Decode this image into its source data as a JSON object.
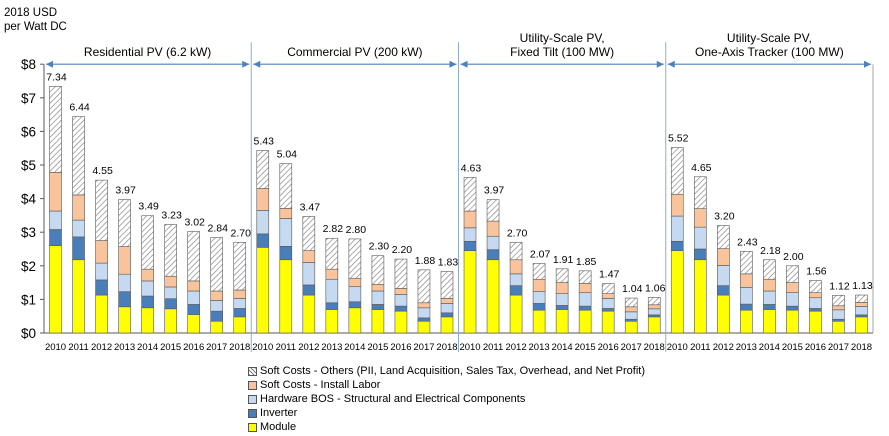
{
  "chart_data": {
    "type": "bar",
    "stacked": true,
    "y_axis_title": [
      "2018 USD",
      "per Watt DC"
    ],
    "ylim": [
      0,
      8
    ],
    "y_ticks": [
      "$0",
      "$1",
      "$2",
      "$3",
      "$4",
      "$5",
      "$6",
      "$7",
      "$8"
    ],
    "grid": false,
    "legend_position": "bottom",
    "years": [
      "2010",
      "2011",
      "2012",
      "2013",
      "2014",
      "2015",
      "2016",
      "2017",
      "2018"
    ],
    "series": [
      {
        "name": "Soft Costs - Others (PII, Land Acquisition, Sales Tax, Overhead, and Net Profit)",
        "color": "#ffffff",
        "pattern": "hatch"
      },
      {
        "name": "Soft Costs - Install Labor",
        "color": "#f9c49b"
      },
      {
        "name": "Hardware BOS - Structural and Electrical Components",
        "color": "#c5d9f1"
      },
      {
        "name": "Inverter",
        "color": "#4a7ebb"
      },
      {
        "name": "Module",
        "color": "#ffff00"
      }
    ],
    "segments": [
      {
        "title": [
          "Residential PV (6.2 kW)"
        ],
        "totals": [
          "7.34",
          "6.44",
          "4.55",
          "3.97",
          "3.49",
          "3.23",
          "3.02",
          "2.84",
          "2.70"
        ],
        "stacks": [
          [
            2.6,
            0.48,
            0.55,
            1.15,
            2.56
          ],
          [
            2.18,
            0.68,
            0.5,
            0.75,
            2.33
          ],
          [
            1.13,
            0.45,
            0.5,
            0.67,
            1.8
          ],
          [
            0.78,
            0.45,
            0.52,
            0.82,
            1.4
          ],
          [
            0.75,
            0.35,
            0.45,
            0.35,
            1.59
          ],
          [
            0.72,
            0.3,
            0.35,
            0.32,
            1.54
          ],
          [
            0.55,
            0.3,
            0.4,
            0.3,
            1.47
          ],
          [
            0.35,
            0.3,
            0.32,
            0.28,
            1.59
          ],
          [
            0.48,
            0.25,
            0.3,
            0.25,
            1.42
          ]
        ]
      },
      {
        "title": [
          "Commercial PV (200 kW)"
        ],
        "totals": [
          "5.43",
          "5.04",
          "3.47",
          "2.82",
          "2.80",
          "2.30",
          "2.20",
          "1.88",
          "1.83"
        ],
        "stacks": [
          [
            2.55,
            0.4,
            0.7,
            0.65,
            1.13
          ],
          [
            2.18,
            0.4,
            0.83,
            0.3,
            1.33
          ],
          [
            1.13,
            0.3,
            0.67,
            0.35,
            1.02
          ],
          [
            0.7,
            0.2,
            0.7,
            0.3,
            0.92
          ],
          [
            0.75,
            0.18,
            0.45,
            0.25,
            1.17
          ],
          [
            0.7,
            0.15,
            0.4,
            0.2,
            0.85
          ],
          [
            0.65,
            0.15,
            0.35,
            0.18,
            0.87
          ],
          [
            0.35,
            0.1,
            0.3,
            0.15,
            0.98
          ],
          [
            0.48,
            0.12,
            0.28,
            0.15,
            0.8
          ]
        ]
      },
      {
        "title": [
          "Utility-Scale PV,",
          "Fixed Tilt (100 MW)"
        ],
        "totals": [
          "4.63",
          "3.97",
          "2.70",
          "2.07",
          "1.91",
          "1.85",
          "1.47",
          "1.04",
          "1.06"
        ],
        "stacks": [
          [
            2.45,
            0.28,
            0.4,
            0.5,
            1.0
          ],
          [
            2.18,
            0.3,
            0.4,
            0.45,
            0.64
          ],
          [
            1.13,
            0.28,
            0.35,
            0.42,
            0.52
          ],
          [
            0.68,
            0.2,
            0.35,
            0.37,
            0.47
          ],
          [
            0.7,
            0.12,
            0.35,
            0.33,
            0.41
          ],
          [
            0.68,
            0.12,
            0.4,
            0.28,
            0.37
          ],
          [
            0.65,
            0.08,
            0.3,
            0.14,
            0.3
          ],
          [
            0.35,
            0.06,
            0.22,
            0.15,
            0.26
          ],
          [
            0.48,
            0.06,
            0.18,
            0.12,
            0.22
          ]
        ]
      },
      {
        "title": [
          "Utility-Scale PV,",
          "One-Axis Tracker (100 MW)"
        ],
        "totals": [
          "5.52",
          "4.65",
          "3.20",
          "2.43",
          "2.18",
          "2.00",
          "1.56",
          "1.12",
          "1.13"
        ],
        "stacks": [
          [
            2.45,
            0.28,
            0.75,
            0.65,
            1.39
          ],
          [
            2.18,
            0.32,
            0.65,
            0.55,
            0.95
          ],
          [
            1.13,
            0.28,
            0.6,
            0.5,
            0.69
          ],
          [
            0.68,
            0.18,
            0.5,
            0.4,
            0.67
          ],
          [
            0.7,
            0.15,
            0.4,
            0.35,
            0.58
          ],
          [
            0.68,
            0.12,
            0.4,
            0.3,
            0.5
          ],
          [
            0.65,
            0.08,
            0.32,
            0.15,
            0.36
          ],
          [
            0.35,
            0.06,
            0.28,
            0.12,
            0.31
          ],
          [
            0.48,
            0.06,
            0.25,
            0.12,
            0.22
          ]
        ]
      }
    ]
  }
}
